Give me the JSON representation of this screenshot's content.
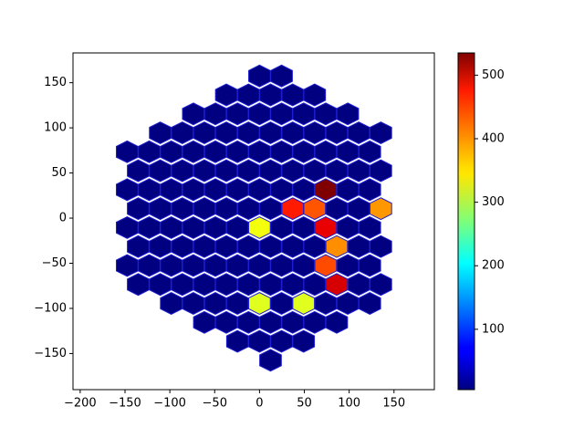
{
  "chart_data": {
    "type": "hexbin",
    "title": "",
    "xlabel": "",
    "ylabel": "",
    "xlim": [
      -208,
      195
    ],
    "ylim": [
      -190,
      183
    ],
    "x_ticks": [
      -200,
      -150,
      -100,
      -50,
      0,
      50,
      100,
      150
    ],
    "y_ticks": [
      -150,
      -100,
      -50,
      0,
      50,
      100,
      150
    ],
    "x_tick_labels": [
      "−200",
      "−150",
      "−100",
      "−50",
      "0",
      "50",
      "100",
      "150"
    ],
    "y_tick_labels": [
      "−150",
      "−100",
      "−50",
      "0",
      "50",
      "100",
      "150"
    ],
    "hex_edge_color": "#1e1ed2",
    "colormap": "jet",
    "colorbar": {
      "min": 5,
      "max": 535,
      "ticks": [
        100,
        200,
        300,
        400,
        500
      ],
      "tick_labels": [
        "100",
        "200",
        "300",
        "400",
        "500"
      ]
    },
    "background_value": 5,
    "rows": [
      {
        "y": 157.5,
        "x": [
          0,
          24.6
        ]
      },
      {
        "y": 136.5,
        "x": [
          -37,
          -12.3,
          12.3,
          37,
          61.5
        ]
      },
      {
        "y": 115.5,
        "x": [
          -73.8,
          -49.2,
          -24.6,
          0,
          24.6,
          49.2,
          73.8,
          98.4
        ]
      },
      {
        "y": 94.5,
        "x": [
          -110.7,
          -86.1,
          -61.5,
          -37,
          -12.3,
          12.3,
          37,
          61.5,
          86.1,
          110.7,
          135.3
        ]
      },
      {
        "y": 73.5,
        "x": [
          -147.6,
          -123,
          -98.4,
          -73.8,
          -49.2,
          -24.6,
          0,
          24.6,
          49.2,
          73.8,
          98.4,
          123
        ]
      },
      {
        "y": 52.5,
        "x": [
          -135.3,
          -110.7,
          -86.1,
          -61.5,
          -37,
          -12.3,
          12.3,
          37,
          61.5,
          86.1,
          110.7,
          135.3
        ]
      },
      {
        "y": 31.5,
        "x": [
          -147.6,
          -123,
          -98.4,
          -73.8,
          -49.2,
          -24.6,
          0,
          24.6,
          49.2,
          73.8,
          98.4,
          123
        ]
      },
      {
        "y": 10.5,
        "x": [
          -135.3,
          -110.7,
          -86.1,
          -61.5,
          -37,
          -12.3,
          12.3,
          37,
          61.5,
          86.1,
          110.7,
          135.3
        ]
      },
      {
        "y": -10.5,
        "x": [
          -147.6,
          -123,
          -98.4,
          -73.8,
          -49.2,
          -24.6,
          0,
          24.6,
          49.2,
          73.8,
          98.4,
          123
        ]
      },
      {
        "y": -31.5,
        "x": [
          -135.3,
          -110.7,
          -86.1,
          -61.5,
          -37,
          -12.3,
          12.3,
          37,
          61.5,
          86.1,
          110.7,
          135.3
        ]
      },
      {
        "y": -52.5,
        "x": [
          -147.6,
          -123,
          -98.4,
          -73.8,
          -49.2,
          -24.6,
          0,
          24.6,
          49.2,
          73.8,
          98.4,
          123
        ]
      },
      {
        "y": -73.5,
        "x": [
          -135.3,
          -110.7,
          -86.1,
          -61.5,
          -37,
          -12.3,
          12.3,
          37,
          61.5,
          86.1,
          110.7,
          135.3
        ]
      },
      {
        "y": -94.5,
        "x": [
          -98.4,
          -73.8,
          -49.2,
          -24.6,
          0,
          24.6,
          49.2,
          73.8,
          98.4,
          123
        ]
      },
      {
        "y": -115.5,
        "x": [
          -61.5,
          -37,
          -12.3,
          12.3,
          37,
          61.5,
          86.1
        ]
      },
      {
        "y": -136.5,
        "x": [
          -24.6,
          0,
          24.6,
          49.2
        ]
      },
      {
        "y": -157.5,
        "x": [
          12.3
        ]
      }
    ],
    "hot_cells": [
      {
        "x": 73.8,
        "y": 31.5,
        "value": 535
      },
      {
        "x": 37,
        "y": 10.5,
        "value": 455
      },
      {
        "x": 61.5,
        "y": 10.5,
        "value": 425
      },
      {
        "x": 135.3,
        "y": 10.5,
        "value": 390
      },
      {
        "x": 0,
        "y": -10.5,
        "value": 330
      },
      {
        "x": 73.8,
        "y": -10.5,
        "value": 480
      },
      {
        "x": 86.1,
        "y": -31.5,
        "value": 395
      },
      {
        "x": 73.8,
        "y": -52.5,
        "value": 430
      },
      {
        "x": 86.1,
        "y": -73.5,
        "value": 490
      },
      {
        "x": 0,
        "y": -94.5,
        "value": 320
      },
      {
        "x": 49.2,
        "y": -94.5,
        "value": 320
      }
    ]
  }
}
